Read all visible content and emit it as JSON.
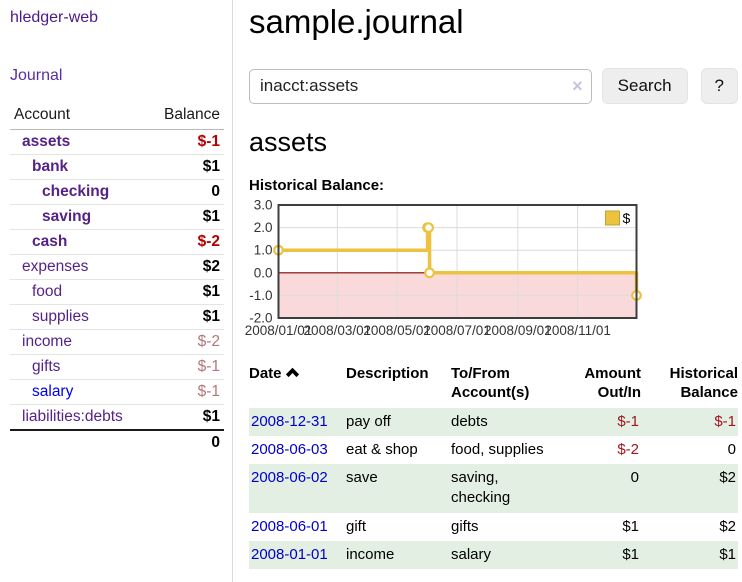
{
  "sidebar": {
    "brand": "hledger-web",
    "journal_link": "Journal",
    "accounts_table": {
      "headers": [
        "Account",
        "Balance"
      ],
      "rows": [
        {
          "name": "assets",
          "balance": "$-1",
          "level": 1,
          "bold": true,
          "neg": "strong",
          "link_color": "purple"
        },
        {
          "name": "bank",
          "balance": "$1",
          "level": 2,
          "bold": true,
          "neg": null,
          "link_color": "purple"
        },
        {
          "name": "checking",
          "balance": "0",
          "level": 3,
          "bold": true,
          "neg": null,
          "link_color": "purple"
        },
        {
          "name": "saving",
          "balance": "$1",
          "level": 3,
          "bold": true,
          "neg": null,
          "link_color": "purple"
        },
        {
          "name": "cash",
          "balance": "$-2",
          "level": 2,
          "bold": true,
          "neg": "strong",
          "link_color": "purple"
        },
        {
          "name": "expenses",
          "balance": "$2",
          "level": 1,
          "bold": false,
          "neg": null,
          "link_color": "purple"
        },
        {
          "name": "food",
          "balance": "$1",
          "level": 2,
          "bold": false,
          "neg": null,
          "link_color": "purple"
        },
        {
          "name": "supplies",
          "balance": "$1",
          "level": 2,
          "bold": false,
          "neg": null,
          "link_color": "purple"
        },
        {
          "name": "income",
          "balance": "$-2",
          "level": 1,
          "bold": false,
          "neg": "soft",
          "link_color": "purple"
        },
        {
          "name": "gifts",
          "balance": "$-1",
          "level": 2,
          "bold": false,
          "neg": "soft",
          "link_color": "purple"
        },
        {
          "name": "salary",
          "balance": "$-1",
          "level": 2,
          "bold": false,
          "neg": "soft",
          "link_color": "blue"
        },
        {
          "name": "liabilities:debts",
          "balance": "$1",
          "level": 1,
          "bold": false,
          "neg": null,
          "link_color": "purple"
        }
      ],
      "total": "0"
    }
  },
  "header": {
    "title": "sample.journal"
  },
  "search": {
    "value": "inacct:assets",
    "clear_icon": "×",
    "button_label": "Search",
    "help_label": "?"
  },
  "account_page": {
    "heading": "assets",
    "chart_label": "Historical Balance:"
  },
  "chart_data": {
    "type": "line",
    "title": "Historical Balance",
    "step": true,
    "series": [
      {
        "name": "$",
        "color": "#edc240",
        "points": [
          [
            "2008-01-01",
            1
          ],
          [
            "2008-06-01",
            2
          ],
          [
            "2008-06-02",
            2
          ],
          [
            "2008-06-03",
            0
          ],
          [
            "2008-12-31",
            -1
          ]
        ]
      }
    ],
    "xlim": [
      "2008-01-01",
      "2008-12-31"
    ],
    "ylim": [
      -2,
      3
    ],
    "xticks": [
      "2008/01/01",
      "2008/03/01",
      "2008/05/01",
      "2008/07/01",
      "2008/09/01",
      "2008/11/01"
    ],
    "yticks": [
      3.0,
      2.0,
      1.0,
      0.0,
      -1.0,
      -2.0
    ],
    "grid_color": "#dcdcdc",
    "border_color": "#3d3d3d",
    "zero_line_color": "#800000",
    "negative_region_color": "#f9d9d9",
    "legend": {
      "label": "$",
      "position": "top-right"
    }
  },
  "register_table": {
    "headers": {
      "date": "Date",
      "description": "Description",
      "accounts": "To/From Account(s)",
      "amount": "Amount Out/In",
      "balance": "Historical Balance"
    },
    "rows": [
      {
        "date": "2008-12-31",
        "description": "pay off",
        "accounts": "debts",
        "amount": "$-1",
        "amount_neg": true,
        "balance": "$-1",
        "balance_neg": true,
        "shade": true
      },
      {
        "date": "2008-06-03",
        "description": "eat & shop",
        "accounts": "food, supplies",
        "amount": "$-2",
        "amount_neg": true,
        "balance": "0",
        "balance_neg": false,
        "shade": false
      },
      {
        "date": "2008-06-02",
        "description": "save",
        "accounts": "saving, checking",
        "amount": "0",
        "amount_neg": false,
        "balance": "$2",
        "balance_neg": false,
        "shade": true
      },
      {
        "date": "2008-06-01",
        "description": "gift",
        "accounts": "gifts",
        "amount": "$1",
        "amount_neg": false,
        "balance": "$2",
        "balance_neg": false,
        "shade": false
      },
      {
        "date": "2008-01-01",
        "description": "income",
        "accounts": "salary",
        "amount": "$1",
        "amount_neg": false,
        "balance": "$1",
        "balance_neg": false,
        "shade": true
      }
    ]
  }
}
